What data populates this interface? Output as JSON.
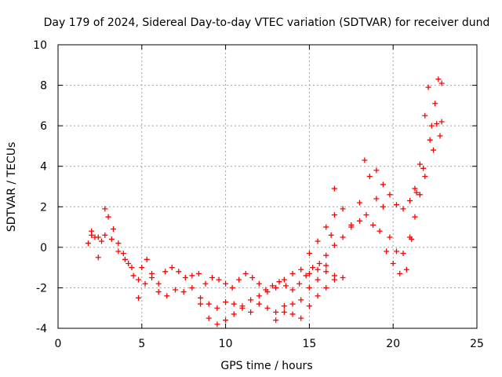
{
  "chart_data": {
    "type": "scatter",
    "title": "Day 179 of 2024, Sidereal Day-to-day VTEC variation (SDTVAR) for receiver dund",
    "xlabel": "GPS time / hours",
    "ylabel": "SDTVAR / TECUs",
    "xlim": [
      0,
      25
    ],
    "ylim": [
      -4,
      10
    ],
    "xticks": [
      "0",
      "5",
      "10",
      "15",
      "20",
      "25"
    ],
    "yticks": [
      "-4",
      "-2",
      "0",
      "2",
      "4",
      "6",
      "8",
      "10"
    ],
    "grid": true,
    "marker": "plus",
    "series": [
      {
        "name": "SDTVAR",
        "color": "#ff0000",
        "points": [
          [
            1.8,
            0.2
          ],
          [
            2.0,
            0.8
          ],
          [
            2.2,
            0.5
          ],
          [
            2.4,
            -0.5
          ],
          [
            2.6,
            0.3
          ],
          [
            2.8,
            1.9
          ],
          [
            3.0,
            1.5
          ],
          [
            3.3,
            0.9
          ],
          [
            3.6,
            0.2
          ],
          [
            3.9,
            -0.3
          ],
          [
            4.2,
            -0.8
          ],
          [
            4.5,
            -1.4
          ],
          [
            4.8,
            -2.5
          ],
          [
            5.0,
            -1.0
          ],
          [
            5.3,
            -0.6
          ],
          [
            5.6,
            -1.3
          ],
          [
            6.0,
            -1.8
          ],
          [
            6.4,
            -1.2
          ],
          [
            6.8,
            -1.0
          ],
          [
            7.2,
            -1.2
          ],
          [
            7.6,
            -1.5
          ],
          [
            8.0,
            -1.4
          ],
          [
            8.4,
            -1.3
          ],
          [
            8.8,
            -1.8
          ],
          [
            9.2,
            -1.5
          ],
          [
            9.6,
            -1.6
          ],
          [
            10.0,
            -1.8
          ],
          [
            10.4,
            -2.0
          ],
          [
            10.8,
            -1.6
          ],
          [
            11.2,
            -1.3
          ],
          [
            11.6,
            -1.5
          ],
          [
            12.0,
            -1.8
          ],
          [
            12.4,
            -2.1
          ],
          [
            12.8,
            -1.9
          ],
          [
            13.2,
            -1.7
          ],
          [
            13.6,
            -1.9
          ],
          [
            14.0,
            -2.1
          ],
          [
            14.4,
            -1.8
          ],
          [
            14.8,
            -1.4
          ],
          [
            15.2,
            -1.0
          ],
          [
            15.6,
            -0.8
          ],
          [
            16.0,
            -0.4
          ],
          [
            16.3,
            0.6
          ],
          [
            16.5,
            2.9
          ],
          [
            2.0,
            0.6
          ],
          [
            2.4,
            0.5
          ],
          [
            2.8,
            0.6
          ],
          [
            3.2,
            0.4
          ],
          [
            3.6,
            -0.2
          ],
          [
            4.0,
            -0.6
          ],
          [
            4.4,
            -1.0
          ],
          [
            4.8,
            -1.6
          ],
          [
            5.2,
            -1.8
          ],
          [
            5.6,
            -1.5
          ],
          [
            6.0,
            -2.2
          ],
          [
            6.5,
            -2.4
          ],
          [
            7.0,
            -2.1
          ],
          [
            7.5,
            -2.2
          ],
          [
            8.0,
            -2.0
          ],
          [
            8.5,
            -2.5
          ],
          [
            9.0,
            -2.8
          ],
          [
            9.5,
            -3.0
          ],
          [
            10.0,
            -2.7
          ],
          [
            10.5,
            -2.8
          ],
          [
            11.0,
            -3.0
          ],
          [
            11.5,
            -3.2
          ],
          [
            12.0,
            -2.8
          ],
          [
            12.5,
            -3.0
          ],
          [
            13.0,
            -3.2
          ],
          [
            13.5,
            -2.9
          ],
          [
            14.0,
            -3.3
          ],
          [
            14.5,
            -3.5
          ],
          [
            15.0,
            -2.9
          ],
          [
            15.5,
            -2.4
          ],
          [
            16.0,
            -2.0
          ],
          [
            16.5,
            -1.6
          ],
          [
            17.0,
            -1.5
          ],
          [
            8.5,
            -2.8
          ],
          [
            9.0,
            -3.5
          ],
          [
            9.5,
            -3.8
          ],
          [
            10.0,
            -3.6
          ],
          [
            10.5,
            -3.3
          ],
          [
            11.0,
            -2.9
          ],
          [
            11.5,
            -2.6
          ],
          [
            12.0,
            -2.4
          ],
          [
            12.5,
            -2.2
          ],
          [
            13.0,
            -2.0
          ],
          [
            13.5,
            -1.6
          ],
          [
            14.0,
            -1.3
          ],
          [
            14.5,
            -1.1
          ],
          [
            15.0,
            -1.3
          ],
          [
            15.5,
            -1.1
          ],
          [
            16.0,
            -1.2
          ],
          [
            16.5,
            -1.4
          ],
          [
            13.0,
            -3.6
          ],
          [
            13.5,
            -3.2
          ],
          [
            14.0,
            -2.8
          ],
          [
            14.5,
            -2.6
          ],
          [
            15.0,
            -2.0
          ],
          [
            15.5,
            -1.6
          ],
          [
            16.0,
            -0.9
          ],
          [
            16.5,
            0.1
          ],
          [
            17.0,
            0.5
          ],
          [
            17.5,
            1.0
          ],
          [
            18.0,
            1.3
          ],
          [
            18.4,
            1.6
          ],
          [
            18.8,
            1.1
          ],
          [
            19.2,
            0.8
          ],
          [
            19.6,
            -0.2
          ],
          [
            20.0,
            -0.8
          ],
          [
            20.4,
            -1.3
          ],
          [
            15.0,
            -0.3
          ],
          [
            15.5,
            0.3
          ],
          [
            16.0,
            1.0
          ],
          [
            16.5,
            1.6
          ],
          [
            17.0,
            1.9
          ],
          [
            17.5,
            1.1
          ],
          [
            18.0,
            2.2
          ],
          [
            18.3,
            4.3
          ],
          [
            18.6,
            3.5
          ],
          [
            19.0,
            2.4
          ],
          [
            19.4,
            2.0
          ],
          [
            19.8,
            0.5
          ],
          [
            20.2,
            -0.2
          ],
          [
            20.6,
            -0.3
          ],
          [
            21.0,
            0.5
          ],
          [
            21.3,
            1.5
          ],
          [
            21.6,
            2.6
          ],
          [
            21.9,
            3.5
          ],
          [
            22.2,
            5.3
          ],
          [
            22.6,
            6.1
          ],
          [
            22.9,
            6.2
          ],
          [
            19.0,
            3.8
          ],
          [
            19.4,
            3.1
          ],
          [
            19.8,
            2.6
          ],
          [
            20.2,
            2.1
          ],
          [
            20.6,
            1.9
          ],
          [
            21.0,
            2.3
          ],
          [
            21.3,
            2.9
          ],
          [
            21.6,
            4.1
          ],
          [
            21.9,
            6.5
          ],
          [
            22.1,
            7.9
          ],
          [
            22.3,
            6.0
          ],
          [
            22.5,
            7.1
          ],
          [
            22.7,
            8.3
          ],
          [
            22.9,
            8.1
          ],
          [
            20.8,
            -1.1
          ],
          [
            21.1,
            0.4
          ],
          [
            21.4,
            2.7
          ],
          [
            21.8,
            3.9
          ],
          [
            22.4,
            4.8
          ],
          [
            22.8,
            5.5
          ]
        ]
      }
    ]
  }
}
